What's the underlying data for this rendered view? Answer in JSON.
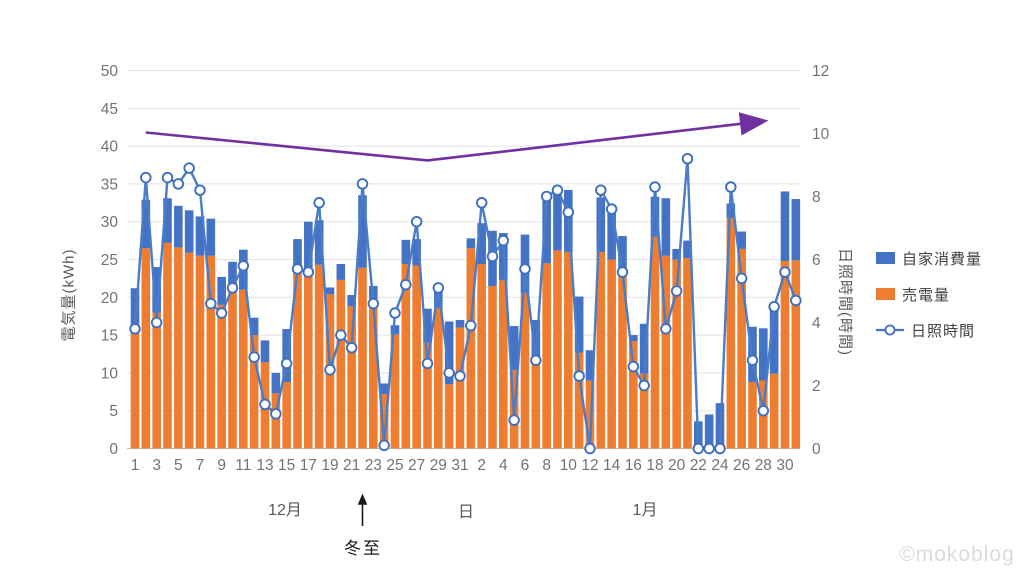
{
  "chart_data": {
    "type": "combo: stacked bar + line (secondary axis)",
    "title": "",
    "ylabel_left": "電気量(kWh)",
    "ylabel_right": "日照時間(時間)",
    "xlabel": "日",
    "month_labels": [
      "12月",
      "1月"
    ],
    "ylim_left": [
      0,
      50
    ],
    "y_left_tick_labels": [
      "0",
      "5",
      "10",
      "15",
      "20",
      "25",
      "30",
      "35",
      "40",
      "45",
      "50"
    ],
    "ylim_right": [
      0,
      12
    ],
    "y_right_tick_labels": [
      "0",
      "2",
      "4",
      "6",
      "8",
      "10",
      "12"
    ],
    "x_tick_labels": [
      "1",
      "3",
      "5",
      "7",
      "9",
      "11",
      "13",
      "15",
      "17",
      "19",
      "21",
      "23",
      "25",
      "27",
      "29",
      "31",
      "2",
      "4",
      "6",
      "8",
      "10",
      "12",
      "14",
      "16",
      "18",
      "20",
      "22",
      "24",
      "26",
      "28",
      "30"
    ],
    "grid": true,
    "legend_position": "right",
    "categories": [
      "12/1",
      "12/2",
      "12/3",
      "12/4",
      "12/5",
      "12/6",
      "12/7",
      "12/8",
      "12/9",
      "12/10",
      "12/11",
      "12/12",
      "12/13",
      "12/14",
      "12/15",
      "12/16",
      "12/17",
      "12/18",
      "12/19",
      "12/20",
      "12/21",
      "12/22",
      "12/23",
      "12/24",
      "12/25",
      "12/26",
      "12/27",
      "12/28",
      "12/29",
      "12/30",
      "12/31",
      "1/1",
      "1/2",
      "1/3",
      "1/4",
      "1/5",
      "1/6",
      "1/7",
      "1/8",
      "1/9",
      "1/10",
      "1/11",
      "1/12",
      "1/13",
      "1/14",
      "1/15",
      "1/16",
      "1/17",
      "1/18",
      "1/19",
      "1/20",
      "1/21",
      "1/22",
      "1/23",
      "1/24",
      "1/25",
      "1/26",
      "1/27",
      "1/28",
      "1/29",
      "1/30",
      "1/31"
    ],
    "series": [
      {
        "name": "自家消費量",
        "type": "bar",
        "stack": "top",
        "axis": "left",
        "color": "#4472C4",
        "values": [
          4.7,
          6.4,
          6.0,
          5.9,
          5.5,
          5.6,
          5.2,
          4.9,
          3.7,
          2.9,
          5.3,
          2.3,
          2.9,
          2.7,
          7.0,
          4.2,
          6.8,
          5.9,
          0.9,
          2.1,
          1.5,
          9.6,
          1.7,
          1.4,
          1.2,
          3.2,
          3.5,
          4.5,
          2.4,
          8.3,
          1.0,
          1.3,
          5.4,
          7.3,
          6.2,
          5.8,
          7.7,
          5.5,
          9.1,
          8.1,
          8.2,
          7.4,
          4.0,
          7.2,
          6.4,
          4.7,
          0.8,
          6.6,
          5.3,
          7.6,
          1.4,
          2.3,
          3.3,
          4.2,
          5.5,
          1.9,
          2.3,
          7.3,
          6.9,
          8.7,
          9.2,
          8.1
        ]
      },
      {
        "name": "売電量",
        "type": "bar",
        "stack": "bottom",
        "axis": "left",
        "color": "#ED7D31",
        "values": [
          16.5,
          26.5,
          18.0,
          27.2,
          26.6,
          25.9,
          25.5,
          25.5,
          19.0,
          21.8,
          21.0,
          15.0,
          11.4,
          7.3,
          8.8,
          23.5,
          23.2,
          24.3,
          20.4,
          22.3,
          18.8,
          23.9,
          19.8,
          7.2,
          15.1,
          24.4,
          24.2,
          14.0,
          18.6,
          8.5,
          16.0,
          26.5,
          24.4,
          21.5,
          22.3,
          10.4,
          20.6,
          11.5,
          24.5,
          26.2,
          26.0,
          12.7,
          9.0,
          26.0,
          25.0,
          23.4,
          14.2,
          9.9,
          28.0,
          25.5,
          25.0,
          25.2,
          0.3,
          0.3,
          0.5,
          30.5,
          26.4,
          8.8,
          9.0,
          9.9,
          24.8,
          24.9
        ]
      },
      {
        "name": "日照時間",
        "type": "line",
        "axis": "right",
        "color": "#4472C4",
        "marker": "circle-white-fill",
        "values": [
          3.8,
          8.6,
          4.0,
          8.6,
          8.4,
          8.9,
          8.2,
          4.6,
          4.3,
          5.1,
          5.8,
          2.9,
          1.4,
          1.1,
          2.7,
          5.7,
          5.6,
          7.8,
          2.5,
          3.6,
          3.2,
          8.4,
          4.6,
          0.1,
          4.3,
          5.2,
          7.2,
          2.7,
          5.1,
          2.4,
          2.3,
          3.9,
          7.8,
          6.1,
          6.6,
          0.9,
          5.7,
          2.8,
          8.0,
          8.2,
          7.5,
          2.3,
          0.0,
          8.2,
          7.6,
          5.6,
          2.6,
          2.0,
          8.3,
          3.8,
          5.0,
          9.2,
          0.0,
          0.0,
          0.0,
          8.3,
          5.4,
          2.8,
          1.2,
          4.5,
          5.6,
          4.7
        ]
      }
    ],
    "annotations": {
      "solstice": {
        "text": "冬至",
        "arrow": "up",
        "target_category": "12/22"
      },
      "trend_arrow": {
        "color": "#7030A0",
        "style": "arrow-right-end",
        "points": [
          {
            "day_index": 1,
            "kwh": 41.8
          },
          {
            "day_index": 27,
            "kwh": 38.1
          },
          {
            "day_index": 58,
            "kwh": 43.3
          }
        ]
      }
    },
    "watermark": "©mokoblog"
  }
}
